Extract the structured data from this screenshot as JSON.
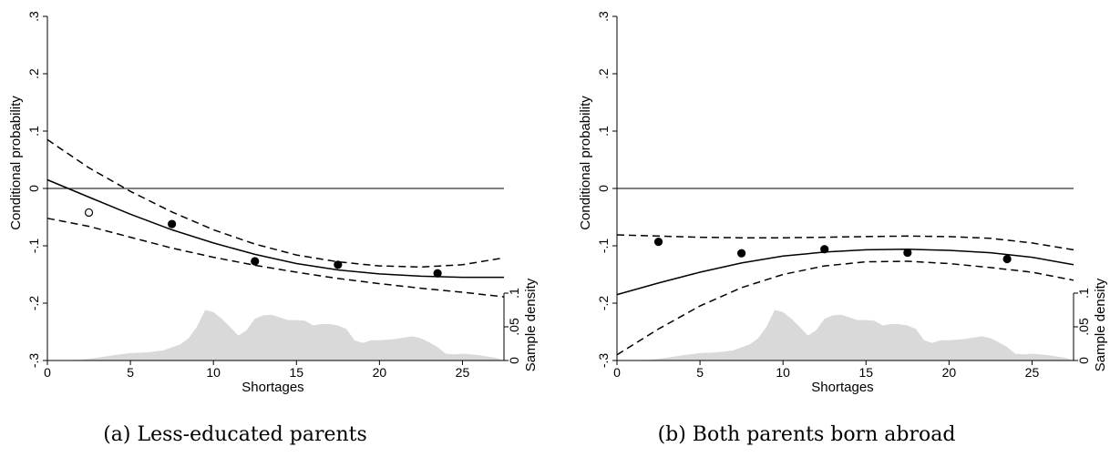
{
  "chart_data": [
    {
      "type": "line",
      "caption": "(a) Less-educated parents",
      "xlabel": "Shortages",
      "ylabel": "Conditional probability",
      "y2label": "Sample density",
      "xlim": [
        0,
        27.5
      ],
      "ylim": [
        -0.3,
        0.3
      ],
      "y2lim": [
        0,
        0.1
      ],
      "x_ticks": [
        0,
        5,
        10,
        15,
        20,
        25
      ],
      "x_tick_labels": [
        "0",
        "5",
        "10",
        "15",
        "20",
        "25"
      ],
      "y_ticks": [
        -0.3,
        -0.2,
        -0.1,
        0,
        0.1,
        0.2,
        0.3
      ],
      "y_tick_labels": [
        "-.3",
        "-.2",
        "-.1",
        "0",
        ".1",
        ".2",
        ".3"
      ],
      "y2_ticks": [
        0,
        0.05,
        0.1
      ],
      "y2_tick_labels": [
        "0",
        ".05",
        ".1"
      ],
      "zero_line": 0,
      "grid": false,
      "series": [
        {
          "role": "estimate",
          "style": "solid",
          "x": [
            0,
            2.5,
            5,
            7.5,
            10,
            12.5,
            15,
            17.5,
            20,
            22.5,
            25,
            27.5
          ],
          "y": [
            0.015,
            -0.015,
            -0.045,
            -0.072,
            -0.095,
            -0.115,
            -0.131,
            -0.142,
            -0.149,
            -0.153,
            -0.155,
            -0.155
          ]
        },
        {
          "role": "upper-ci",
          "style": "dashed",
          "x": [
            0,
            2.5,
            5,
            7.5,
            10,
            12.5,
            15,
            17.5,
            20,
            22.5,
            25,
            27.5
          ],
          "y": [
            0.085,
            0.036,
            -0.005,
            -0.041,
            -0.072,
            -0.097,
            -0.116,
            -0.128,
            -0.135,
            -0.137,
            -0.133,
            -0.121
          ]
        },
        {
          "role": "lower-ci",
          "style": "dashed",
          "x": [
            0,
            2.5,
            5,
            7.5,
            10,
            12.5,
            15,
            17.5,
            20,
            22.5,
            25,
            27.5
          ],
          "y": [
            -0.052,
            -0.066,
            -0.085,
            -0.104,
            -0.12,
            -0.134,
            -0.146,
            -0.157,
            -0.166,
            -0.174,
            -0.181,
            -0.189
          ]
        }
      ],
      "points": [
        {
          "x": 2.5,
          "y": -0.042,
          "filled": false
        },
        {
          "x": 7.5,
          "y": -0.062,
          "filled": true
        },
        {
          "x": 12.5,
          "y": -0.127,
          "filled": true
        },
        {
          "x": 17.5,
          "y": -0.133,
          "filled": true
        },
        {
          "x": 23.5,
          "y": -0.148,
          "filled": true
        }
      ],
      "density": {
        "x": [
          0,
          2,
          3,
          4,
          5,
          6,
          7,
          8,
          8.5,
          9,
          9.5,
          10,
          10.5,
          11,
          11.5,
          12,
          12.5,
          13,
          13.5,
          14,
          14.5,
          15,
          15.5,
          16,
          16.5,
          17,
          17.5,
          18,
          18.5,
          19,
          19.5,
          20,
          20.5,
          21,
          21.5,
          22,
          22.5,
          23,
          23.5,
          24,
          24.5,
          25,
          25.5,
          26,
          26.5,
          27,
          27.5
        ],
        "y": [
          0,
          0.001,
          0.004,
          0.008,
          0.011,
          0.012,
          0.015,
          0.024,
          0.033,
          0.05,
          0.075,
          0.072,
          0.062,
          0.05,
          0.037,
          0.045,
          0.062,
          0.067,
          0.068,
          0.064,
          0.06,
          0.06,
          0.059,
          0.052,
          0.054,
          0.054,
          0.052,
          0.047,
          0.03,
          0.026,
          0.03,
          0.03,
          0.031,
          0.032,
          0.034,
          0.036,
          0.033,
          0.027,
          0.02,
          0.01,
          0.009,
          0.01,
          0.009,
          0.008,
          0.006,
          0.004,
          0.0
        ]
      }
    },
    {
      "type": "line",
      "caption": "(b) Both parents born abroad",
      "xlabel": "Shortages",
      "ylabel": "Conditional probability",
      "y2label": "Sample density",
      "xlim": [
        0,
        27.5
      ],
      "ylim": [
        -0.3,
        0.3
      ],
      "y2lim": [
        0,
        0.1
      ],
      "x_ticks": [
        0,
        5,
        10,
        15,
        20,
        25
      ],
      "x_tick_labels": [
        "0",
        "5",
        "10",
        "15",
        "20",
        "25"
      ],
      "y_ticks": [
        -0.3,
        -0.2,
        -0.1,
        0,
        0.1,
        0.2,
        0.3
      ],
      "y_tick_labels": [
        "-.3",
        "-.2",
        "-.1",
        "0",
        ".1",
        ".2",
        ".3"
      ],
      "y2_ticks": [
        0,
        0.05,
        0.1
      ],
      "y2_tick_labels": [
        "0",
        ".05",
        ".1"
      ],
      "zero_line": 0,
      "grid": false,
      "series": [
        {
          "role": "estimate",
          "style": "solid",
          "x": [
            0,
            2.5,
            5,
            7.5,
            10,
            12.5,
            15,
            17.5,
            20,
            22.5,
            25,
            27.5
          ],
          "y": [
            -0.185,
            -0.165,
            -0.146,
            -0.13,
            -0.118,
            -0.111,
            -0.107,
            -0.106,
            -0.108,
            -0.112,
            -0.12,
            -0.133
          ]
        },
        {
          "role": "upper-ci",
          "style": "dashed",
          "x": [
            0,
            2.5,
            5,
            7.5,
            10,
            12.5,
            15,
            17.5,
            20,
            22.5,
            25,
            27.5
          ],
          "y": [
            -0.081,
            -0.083,
            -0.085,
            -0.086,
            -0.086,
            -0.085,
            -0.084,
            -0.083,
            -0.084,
            -0.087,
            -0.095,
            -0.107
          ]
        },
        {
          "role": "lower-ci",
          "style": "dashed",
          "x": [
            0,
            2.5,
            5,
            7.5,
            10,
            12.5,
            15,
            17.5,
            20,
            22.5,
            25,
            27.5
          ],
          "y": [
            -0.29,
            -0.245,
            -0.205,
            -0.173,
            -0.15,
            -0.135,
            -0.128,
            -0.127,
            -0.131,
            -0.138,
            -0.146,
            -0.16
          ]
        }
      ],
      "points": [
        {
          "x": 2.5,
          "y": -0.093,
          "filled": true
        },
        {
          "x": 7.5,
          "y": -0.113,
          "filled": true
        },
        {
          "x": 12.5,
          "y": -0.106,
          "filled": true
        },
        {
          "x": 17.5,
          "y": -0.112,
          "filled": true
        },
        {
          "x": 23.5,
          "y": -0.123,
          "filled": true
        }
      ],
      "density": {
        "x": [
          0,
          2,
          3,
          4,
          5,
          6,
          7,
          8,
          8.5,
          9,
          9.5,
          10,
          10.5,
          11,
          11.5,
          12,
          12.5,
          13,
          13.5,
          14,
          14.5,
          15,
          15.5,
          16,
          16.5,
          17,
          17.5,
          18,
          18.5,
          19,
          19.5,
          20,
          20.5,
          21,
          21.5,
          22,
          22.5,
          23,
          23.5,
          24,
          24.5,
          25,
          25.5,
          26,
          26.5,
          27,
          27.5
        ],
        "y": [
          0,
          0.001,
          0.004,
          0.008,
          0.011,
          0.012,
          0.015,
          0.024,
          0.033,
          0.05,
          0.075,
          0.072,
          0.062,
          0.05,
          0.037,
          0.045,
          0.062,
          0.067,
          0.068,
          0.064,
          0.06,
          0.06,
          0.059,
          0.052,
          0.054,
          0.054,
          0.052,
          0.047,
          0.03,
          0.026,
          0.03,
          0.03,
          0.031,
          0.032,
          0.034,
          0.036,
          0.033,
          0.027,
          0.02,
          0.01,
          0.009,
          0.01,
          0.009,
          0.008,
          0.006,
          0.004,
          0.0
        ]
      }
    }
  ]
}
